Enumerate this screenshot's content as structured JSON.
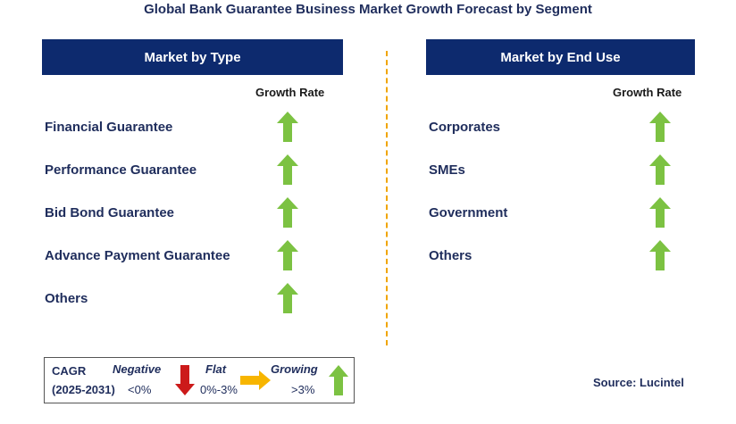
{
  "title": "Global Bank Guarantee Business Market Growth Forecast by Segment",
  "colors": {
    "header_bg": "#0d2a6e",
    "grow_arrow": "#7cc242",
    "negative_arrow": "#cc1a1a",
    "flat_arrow": "#f7b500",
    "divider": "#f0a500",
    "text": "#1f2d5c"
  },
  "left_panel": {
    "header": "Market by Type",
    "growth_rate_label": "Growth Rate",
    "items": [
      {
        "label": "Financial Guarantee",
        "trend": "growing"
      },
      {
        "label": "Performance Guarantee",
        "trend": "growing"
      },
      {
        "label": "Bid Bond Guarantee",
        "trend": "growing"
      },
      {
        "label": "Advance Payment Guarantee",
        "trend": "growing"
      },
      {
        "label": "Others",
        "trend": "growing"
      }
    ]
  },
  "right_panel": {
    "header": "Market by End Use",
    "growth_rate_label": "Growth Rate",
    "items": [
      {
        "label": "Corporates",
        "trend": "growing"
      },
      {
        "label": "SMEs",
        "trend": "growing"
      },
      {
        "label": "Government",
        "trend": "growing"
      },
      {
        "label": "Others",
        "trend": "growing"
      }
    ]
  },
  "legend": {
    "cagr_label": "CAGR",
    "period": "(2025-2031)",
    "negative": {
      "label": "Negative",
      "range": "<0%",
      "icon": "down-arrow-red"
    },
    "flat": {
      "label": "Flat",
      "range": "0%-3%",
      "icon": "right-arrow-yellow"
    },
    "growing": {
      "label": "Growing",
      "range": ">3%",
      "icon": "up-arrow-green"
    }
  },
  "source": "Source: Lucintel"
}
